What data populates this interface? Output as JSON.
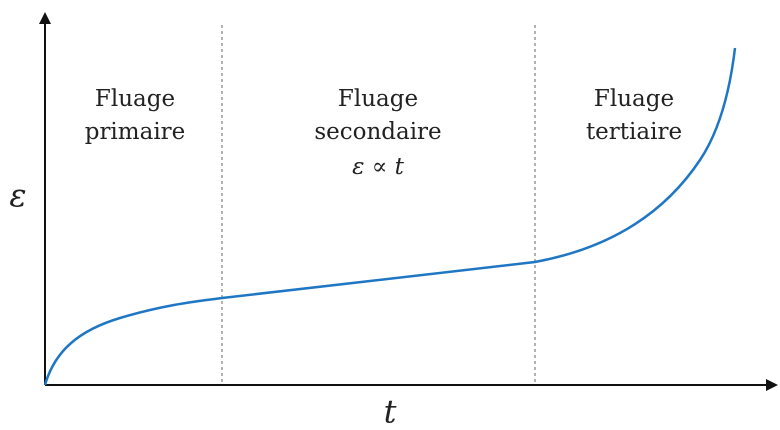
{
  "axes": {
    "y_label": "ε",
    "x_label": "t"
  },
  "regions": [
    {
      "lines": [
        "Fluage",
        "primaire"
      ]
    },
    {
      "lines": [
        "Fluage",
        "secondaire",
        "ε ∝ t"
      ]
    },
    {
      "lines": [
        "Fluage",
        "tertiaire"
      ]
    }
  ]
}
